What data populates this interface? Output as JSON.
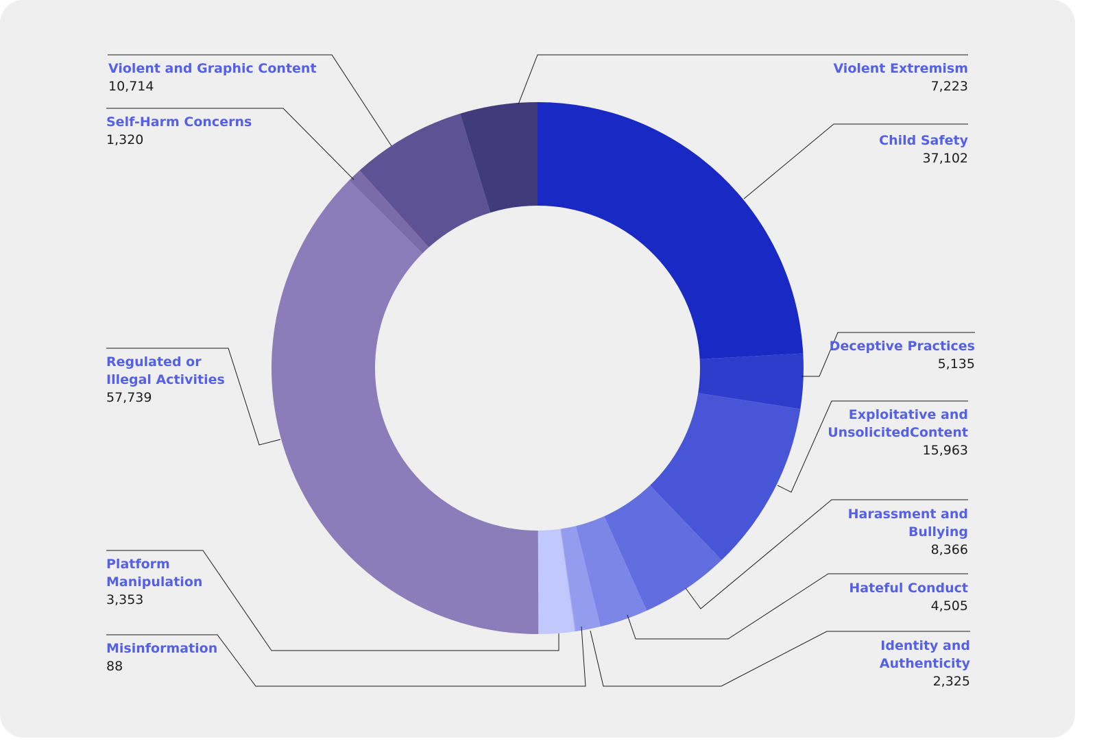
{
  "chart_data": {
    "type": "pie",
    "variant": "donut",
    "categories": [
      "Child Safety",
      "Deceptive Practices",
      "Exploitative and UnsolicitedContent",
      "Harassment and Bullying",
      "Hateful Conduct",
      "Identity and Authenticity",
      "Misinformation",
      "Platform Manipulation",
      "Regulated or Illegal Activities",
      "Self-Harm Concerns",
      "Violent and Graphic Content",
      "Violent Extremism"
    ],
    "values": [
      37102,
      5135,
      15963,
      8366,
      4505,
      2325,
      88,
      3353,
      57739,
      1320,
      10714,
      7223
    ],
    "value_labels": [
      "37,102",
      "5,135",
      "15,963",
      "8,366",
      "4,505",
      "2,325",
      "88",
      "3,353",
      "57,739",
      "1,320",
      "10,714",
      "7,223"
    ],
    "colors": [
      "#1829c4",
      "#2e3ccc",
      "#4855d6",
      "#626ddf",
      "#7c86e7",
      "#949cf0",
      "#a6aef5",
      "#c1c8fb",
      "#8a7db9",
      "#7a6ca9",
      "#5d5293",
      "#413b7c"
    ],
    "legend_position": "callouts",
    "title": ""
  },
  "labels": [
    {
      "name": "Violent and Graphic Content",
      "value": "10,714"
    },
    {
      "name": "Self-Harm Concerns",
      "value": "1,320"
    },
    {
      "name": "Regulated or\nIllegal Activities",
      "value": "57,739"
    },
    {
      "name": "Platform\nManipulation",
      "value": "3,353"
    },
    {
      "name": "Misinformation",
      "value": "88"
    },
    {
      "name": "Violent Extremism",
      "value": "7,223"
    },
    {
      "name": "Child Safety",
      "value": "37,102"
    },
    {
      "name": "Deceptive Practices",
      "value": "5,135"
    },
    {
      "name": "Exploitative and\nUnsolicitedContent",
      "value": "15,963"
    },
    {
      "name": "Harassment and\nBullying",
      "value": "8,366"
    },
    {
      "name": "Hateful Conduct",
      "value": "4,505"
    },
    {
      "name": "Identity and\nAuthenticity",
      "value": "2,325"
    }
  ]
}
